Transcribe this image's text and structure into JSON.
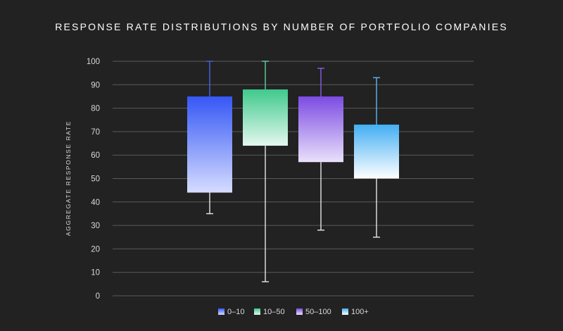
{
  "chart_data": {
    "type": "box",
    "title": "RESPONSE RATE DISTRIBUTIONS BY NUMBER OF PORTFOLIO COMPANIES",
    "xlabel": "",
    "ylabel": "AGGREGATE RESPONSE RATE",
    "ylim": [
      0,
      100
    ],
    "yticks": [
      0,
      10,
      20,
      30,
      40,
      50,
      60,
      70,
      80,
      90,
      100
    ],
    "grid": true,
    "legend_position": "bottom-center",
    "series": [
      {
        "name": "0–10",
        "min": 35,
        "q1": 44,
        "q3": 85,
        "max": 100,
        "color_top": "#3557f5",
        "color_bottom": "#d6dcff",
        "whisker_top_color": "#4a64e8"
      },
      {
        "name": "10–50",
        "min": 6,
        "q1": 64,
        "q3": 88,
        "max": 100,
        "color_top": "#3fc98c",
        "color_bottom": "#e4f8ef",
        "whisker_top_color": "#5cd39d"
      },
      {
        "name": "50–100",
        "min": 28,
        "q1": 57,
        "q3": 85,
        "max": 97,
        "color_top": "#7c4be3",
        "color_bottom": "#e9e1fb",
        "whisker_top_color": "#8a5ce6"
      },
      {
        "name": "100+",
        "min": 25,
        "q1": 50,
        "q3": 73,
        "max": 93,
        "color_top": "#43aef3",
        "color_bottom": "#ffffff",
        "whisker_top_color": "#5db8f0"
      }
    ]
  }
}
